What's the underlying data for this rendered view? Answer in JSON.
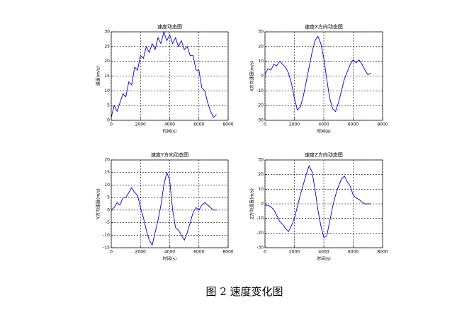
{
  "caption": "图 2  速度变化图",
  "chart_data": [
    {
      "type": "line",
      "title": "速度动态图",
      "x_label": "时间(s)",
      "y_label": "速度(m/s)",
      "xlim": [
        0,
        8000
      ],
      "xticks": [
        0,
        2000,
        4000,
        6000,
        8000
      ],
      "ylim": [
        0,
        30
      ],
      "yticks": [
        0,
        5,
        10,
        15,
        20,
        25,
        30
      ],
      "grid": true,
      "x": [
        0,
        200,
        400,
        600,
        800,
        1000,
        1200,
        1400,
        1600,
        1800,
        2000,
        2200,
        2400,
        2600,
        2800,
        3000,
        3200,
        3400,
        3600,
        3800,
        4000,
        4200,
        4400,
        4600,
        4800,
        5000,
        5200,
        5400,
        5600,
        5800,
        6000,
        6200,
        6400,
        6600,
        6800,
        7000,
        7200
      ],
      "series": [
        {
          "name": "速度",
          "color": "#0000cc",
          "values": [
            1,
            5,
            3,
            6,
            9,
            8,
            13,
            12,
            18,
            17,
            22,
            21,
            25,
            23,
            26,
            24,
            28,
            26,
            30,
            27,
            29,
            26,
            28,
            25,
            27,
            24,
            25,
            22,
            22,
            17,
            17,
            11,
            10,
            6,
            3,
            1,
            2
          ]
        }
      ]
    },
    {
      "type": "line",
      "title": "速度X方向动态图",
      "x_label": "时间(s)",
      "y_label": "X方向速度(m/s)",
      "xlim": [
        0,
        8000
      ],
      "xticks": [
        0,
        2000,
        4000,
        6000,
        8000
      ],
      "ylim": [
        -30,
        30
      ],
      "yticks": [
        -30,
        -20,
        -10,
        0,
        10,
        20,
        30
      ],
      "grid": true,
      "x": [
        0,
        200,
        400,
        600,
        800,
        1000,
        1200,
        1400,
        1600,
        1800,
        2000,
        2200,
        2400,
        2600,
        2800,
        3000,
        3200,
        3400,
        3600,
        3800,
        4000,
        4200,
        4400,
        4600,
        4800,
        5000,
        5200,
        5400,
        5600,
        5800,
        6000,
        6200,
        6400,
        6600,
        6800,
        7000,
        7200
      ],
      "series": [
        {
          "name": "X",
          "color": "#0000cc",
          "values": [
            1,
            5,
            4,
            8,
            7,
            10,
            8,
            6,
            2,
            -5,
            -15,
            -23,
            -21,
            -14,
            -4,
            6,
            16,
            24,
            27,
            22,
            12,
            -2,
            -15,
            -22,
            -24,
            -18,
            -10,
            -2,
            3,
            8,
            11,
            9,
            11,
            8,
            4,
            1,
            2
          ]
        }
      ]
    },
    {
      "type": "line",
      "title": "速度Y方向动态图",
      "x_label": "时间(s)",
      "y_label": "Y方向速度(m/s)",
      "xlim": [
        0,
        8000
      ],
      "xticks": [
        0,
        2000,
        4000,
        6000,
        8000
      ],
      "ylim": [
        -15,
        20
      ],
      "yticks": [
        -15,
        -10,
        -5,
        0,
        5,
        10,
        15,
        20
      ],
      "grid": true,
      "x": [
        0,
        200,
        400,
        600,
        800,
        1000,
        1200,
        1400,
        1600,
        1800,
        2000,
        2200,
        2400,
        2600,
        2800,
        3000,
        3200,
        3400,
        3600,
        3800,
        4000,
        4200,
        4400,
        4600,
        4800,
        5000,
        5200,
        5400,
        5600,
        5800,
        6000,
        6200,
        6400,
        6600,
        6800,
        7000,
        7200
      ],
      "series": [
        {
          "name": "Y",
          "color": "#0000cc",
          "values": [
            0,
            1,
            3,
            2,
            5,
            5,
            7,
            9,
            7,
            6,
            1,
            -3,
            -8,
            -12,
            -14,
            -9,
            -4,
            2,
            10,
            15,
            12,
            0,
            -7,
            -8,
            -10,
            -12,
            -9,
            -5,
            -1,
            1,
            0,
            2,
            3,
            2,
            1,
            0,
            0
          ]
        }
      ]
    },
    {
      "type": "line",
      "title": "速度Z方向动态图",
      "x_label": "时间(s)",
      "y_label": "Z方向速度(m/s)",
      "xlim": [
        0,
        8000
      ],
      "xticks": [
        0,
        2000,
        4000,
        6000,
        8000
      ],
      "ylim": [
        -30,
        30
      ],
      "yticks": [
        -30,
        -20,
        -10,
        0,
        10,
        20,
        30
      ],
      "grid": true,
      "x": [
        0,
        200,
        400,
        600,
        800,
        1000,
        1200,
        1400,
        1600,
        1800,
        2000,
        2200,
        2400,
        2600,
        2800,
        3000,
        3200,
        3400,
        3600,
        3800,
        4000,
        4200,
        4400,
        4600,
        4800,
        5000,
        5200,
        5400,
        5600,
        5800,
        6000,
        6200,
        6400,
        6600,
        6800,
        7000,
        7200
      ],
      "series": [
        {
          "name": "Z",
          "color": "#0000cc",
          "values": [
            -1,
            -1,
            -2,
            -4,
            -8,
            -12,
            -14,
            -17,
            -19,
            -15,
            -10,
            -2,
            6,
            13,
            20,
            26,
            22,
            10,
            -4,
            -15,
            -23,
            -22,
            -12,
            -2,
            6,
            12,
            17,
            19,
            15,
            12,
            6,
            4,
            3,
            1,
            0,
            0,
            0
          ]
        }
      ]
    }
  ]
}
